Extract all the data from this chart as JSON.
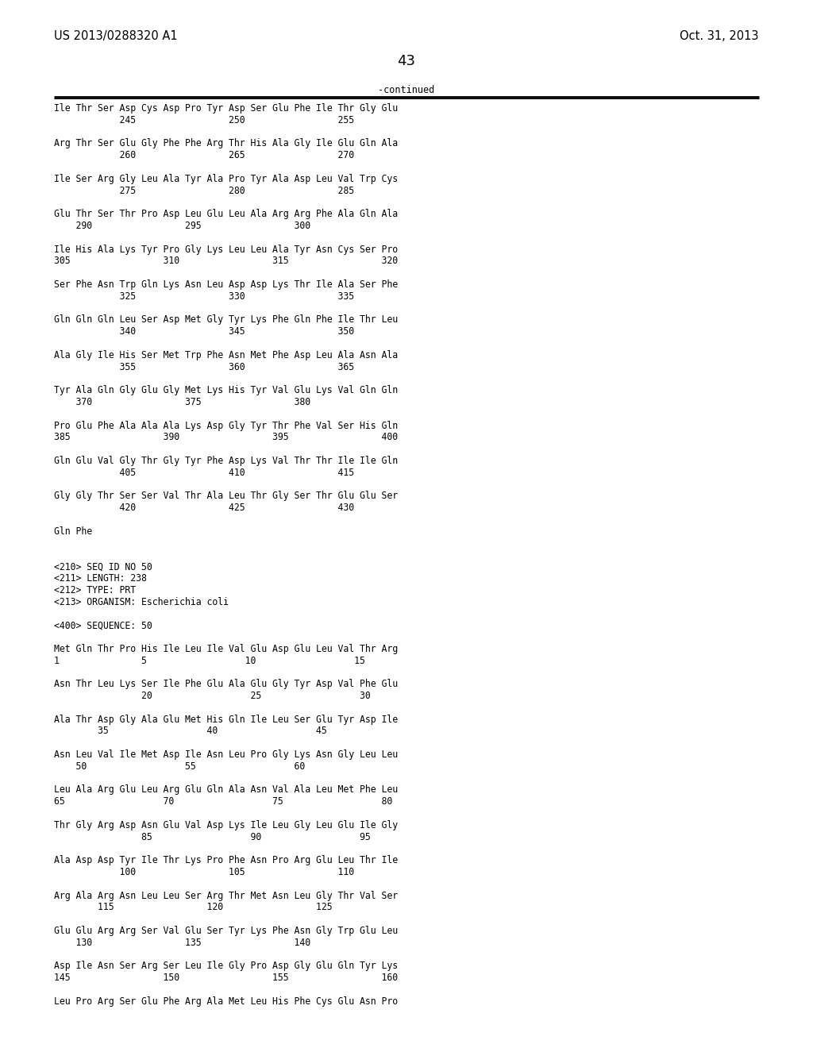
{
  "header_left": "US 2013/0288320 A1",
  "header_right": "Oct. 31, 2013",
  "page_number": "43",
  "continued_label": "-continued",
  "background_color": "#ffffff",
  "text_color": "#000000",
  "lines": [
    "Ile Thr Ser Asp Cys Asp Pro Tyr Asp Ser Glu Phe Ile Thr Gly Glu",
    "            245                 250                 255",
    "",
    "Arg Thr Ser Glu Gly Phe Phe Arg Thr His Ala Gly Ile Glu Gln Ala",
    "            260                 265                 270",
    "",
    "Ile Ser Arg Gly Leu Ala Tyr Ala Pro Tyr Ala Asp Leu Val Trp Cys",
    "            275                 280                 285",
    "",
    "Glu Thr Ser Thr Pro Asp Leu Glu Leu Ala Arg Arg Phe Ala Gln Ala",
    "    290                 295                 300",
    "",
    "Ile His Ala Lys Tyr Pro Gly Lys Leu Leu Ala Tyr Asn Cys Ser Pro",
    "305                 310                 315                 320",
    "",
    "Ser Phe Asn Trp Gln Lys Asn Leu Asp Asp Lys Thr Ile Ala Ser Phe",
    "            325                 330                 335",
    "",
    "Gln Gln Gln Leu Ser Asp Met Gly Tyr Lys Phe Gln Phe Ile Thr Leu",
    "            340                 345                 350",
    "",
    "Ala Gly Ile His Ser Met Trp Phe Asn Met Phe Asp Leu Ala Asn Ala",
    "            355                 360                 365",
    "",
    "Tyr Ala Gln Gly Glu Gly Met Lys His Tyr Val Glu Lys Val Gln Gln",
    "    370                 375                 380",
    "",
    "Pro Glu Phe Ala Ala Ala Lys Asp Gly Tyr Thr Phe Val Ser His Gln",
    "385                 390                 395                 400",
    "",
    "Gln Glu Val Gly Thr Gly Tyr Phe Asp Lys Val Thr Thr Ile Ile Gln",
    "            405                 410                 415",
    "",
    "Gly Gly Thr Ser Ser Val Thr Ala Leu Thr Gly Ser Thr Glu Glu Ser",
    "            420                 425                 430",
    "",
    "Gln Phe",
    "",
    "",
    "<210> SEQ ID NO 50",
    "<211> LENGTH: 238",
    "<212> TYPE: PRT",
    "<213> ORGANISM: Escherichia coli",
    "",
    "<400> SEQUENCE: 50",
    "",
    "Met Gln Thr Pro His Ile Leu Ile Val Glu Asp Glu Leu Val Thr Arg",
    "1               5                  10                  15",
    "",
    "Asn Thr Leu Lys Ser Ile Phe Glu Ala Glu Gly Tyr Asp Val Phe Glu",
    "                20                  25                  30",
    "",
    "Ala Thr Asp Gly Ala Glu Met His Gln Ile Leu Ser Glu Tyr Asp Ile",
    "        35                  40                  45",
    "",
    "Asn Leu Val Ile Met Asp Ile Asn Leu Pro Gly Lys Asn Gly Leu Leu",
    "    50                  55                  60",
    "",
    "Leu Ala Arg Glu Leu Arg Glu Gln Ala Asn Val Ala Leu Met Phe Leu",
    "65                  70                  75                  80",
    "",
    "Thr Gly Arg Asp Asn Glu Val Asp Lys Ile Leu Gly Leu Glu Ile Gly",
    "                85                  90                  95",
    "",
    "Ala Asp Asp Tyr Ile Thr Lys Pro Phe Asn Pro Arg Glu Leu Thr Ile",
    "            100                 105                 110",
    "",
    "Arg Ala Arg Asn Leu Leu Ser Arg Thr Met Asn Leu Gly Thr Val Ser",
    "        115                 120                 125",
    "",
    "Glu Glu Arg Arg Ser Val Glu Ser Tyr Lys Phe Asn Gly Trp Glu Leu",
    "    130                 135                 140",
    "",
    "Asp Ile Asn Ser Arg Ser Leu Ile Gly Pro Asp Gly Glu Gln Tyr Lys",
    "145                 150                 155                 160",
    "",
    "Leu Pro Arg Ser Glu Phe Arg Ala Met Leu His Phe Cys Glu Asn Pro"
  ]
}
